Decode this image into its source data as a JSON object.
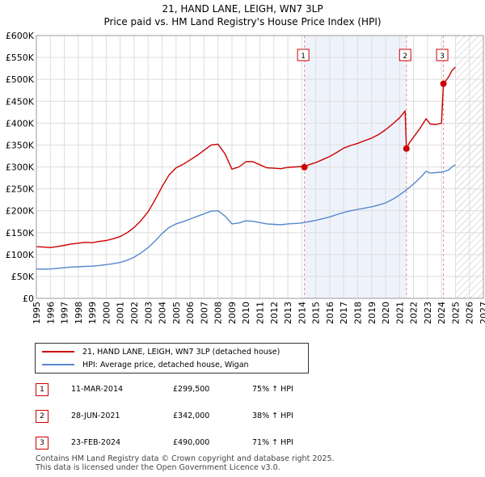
{
  "chart_data": {
    "type": "line",
    "title": "21, HAND LANE, LEIGH, WN7 3LP",
    "subtitle": "Price paid vs. HM Land Registry's House Price Index (HPI)",
    "xlim": [
      1995,
      2027
    ],
    "ylim": [
      0,
      600000
    ],
    "x_ticks": [
      "1995",
      "1996",
      "1997",
      "1998",
      "1999",
      "2000",
      "2001",
      "2002",
      "2003",
      "2004",
      "2005",
      "2006",
      "2007",
      "2008",
      "2009",
      "2010",
      "2011",
      "2012",
      "2013",
      "2014",
      "2015",
      "2016",
      "2017",
      "2018",
      "2019",
      "2020",
      "2021",
      "2022",
      "2023",
      "2024",
      "2025",
      "2026",
      "2027"
    ],
    "y_ticks": [
      {
        "value": 0,
        "label": "£0"
      },
      {
        "value": 50000,
        "label": "£50K"
      },
      {
        "value": 100000,
        "label": "£100K"
      },
      {
        "value": 150000,
        "label": "£150K"
      },
      {
        "value": 200000,
        "label": "£200K"
      },
      {
        "value": 250000,
        "label": "£250K"
      },
      {
        "value": 300000,
        "label": "£300K"
      },
      {
        "value": 350000,
        "label": "£350K"
      },
      {
        "value": 400000,
        "label": "£400K"
      },
      {
        "value": 450000,
        "label": "£450K"
      },
      {
        "value": 500000,
        "label": "£500K"
      },
      {
        "value": 550000,
        "label": "£550K"
      },
      {
        "value": 600000,
        "label": "£600K"
      }
    ],
    "grid": true,
    "shaded_regions": [
      {
        "type": "between_sales",
        "x0": 2014.19,
        "x1": 2021.49,
        "color": "#eef2fb"
      },
      {
        "type": "forecast_hatch",
        "x0": 2025.0,
        "x1": 2027.0
      }
    ],
    "series": [
      {
        "name": "21, HAND LANE, LEIGH, WN7 3LP (detached house)",
        "color": "#cc0000",
        "points": [
          [
            1995.0,
            118000
          ],
          [
            1995.5,
            117000
          ],
          [
            1996.0,
            116000
          ],
          [
            1996.5,
            118000
          ],
          [
            1997.0,
            121000
          ],
          [
            1997.5,
            124000
          ],
          [
            1998.0,
            126000
          ],
          [
            1998.5,
            128000
          ],
          [
            1999.0,
            127000
          ],
          [
            1999.5,
            130000
          ],
          [
            2000.0,
            132000
          ],
          [
            2000.5,
            136000
          ],
          [
            2001.0,
            141000
          ],
          [
            2001.5,
            150000
          ],
          [
            2002.0,
            162000
          ],
          [
            2002.5,
            178000
          ],
          [
            2003.0,
            198000
          ],
          [
            2003.5,
            225000
          ],
          [
            2004.0,
            255000
          ],
          [
            2004.5,
            282000
          ],
          [
            2005.0,
            298000
          ],
          [
            2005.5,
            306000
          ],
          [
            2006.0,
            316000
          ],
          [
            2006.5,
            326000
          ],
          [
            2007.0,
            338000
          ],
          [
            2007.5,
            350000
          ],
          [
            2008.0,
            352000
          ],
          [
            2008.5,
            330000
          ],
          [
            2009.0,
            295000
          ],
          [
            2009.5,
            300000
          ],
          [
            2010.0,
            312000
          ],
          [
            2010.5,
            312000
          ],
          [
            2011.0,
            305000
          ],
          [
            2011.5,
            298000
          ],
          [
            2012.0,
            297000
          ],
          [
            2012.5,
            296000
          ],
          [
            2013.0,
            299000
          ],
          [
            2013.5,
            300000
          ],
          [
            2014.0,
            301000
          ],
          [
            2014.19,
            299500
          ],
          [
            2014.5,
            305000
          ],
          [
            2015.0,
            310000
          ],
          [
            2015.5,
            317000
          ],
          [
            2016.0,
            324000
          ],
          [
            2016.5,
            333000
          ],
          [
            2017.0,
            343000
          ],
          [
            2017.5,
            349000
          ],
          [
            2018.0,
            354000
          ],
          [
            2018.5,
            360000
          ],
          [
            2019.0,
            366000
          ],
          [
            2019.5,
            374000
          ],
          [
            2020.0,
            385000
          ],
          [
            2020.5,
            398000
          ],
          [
            2021.0,
            412000
          ],
          [
            2021.4,
            428000
          ],
          [
            2021.49,
            342000
          ],
          [
            2021.7,
            355000
          ],
          [
            2022.0,
            368000
          ],
          [
            2022.5,
            390000
          ],
          [
            2022.9,
            410000
          ],
          [
            2023.2,
            398000
          ],
          [
            2023.6,
            397000
          ],
          [
            2024.0,
            400000
          ],
          [
            2024.14,
            490000
          ],
          [
            2024.5,
            505000
          ],
          [
            2024.75,
            520000
          ],
          [
            2025.0,
            528000
          ]
        ]
      },
      {
        "name": "HPI: Average price, detached house, Wigan",
        "color": "#5588cc",
        "points": [
          [
            1995.0,
            67000
          ],
          [
            1995.5,
            66500
          ],
          [
            1996.0,
            67000
          ],
          [
            1996.5,
            68500
          ],
          [
            1997.0,
            70000
          ],
          [
            1997.5,
            71500
          ],
          [
            1998.0,
            72000
          ],
          [
            1998.5,
            73000
          ],
          [
            1999.0,
            73500
          ],
          [
            1999.5,
            75000
          ],
          [
            2000.0,
            77000
          ],
          [
            2000.5,
            79000
          ],
          [
            2001.0,
            82000
          ],
          [
            2001.5,
            87000
          ],
          [
            2002.0,
            94000
          ],
          [
            2002.5,
            104000
          ],
          [
            2003.0,
            116000
          ],
          [
            2003.5,
            131000
          ],
          [
            2004.0,
            148000
          ],
          [
            2004.5,
            162000
          ],
          [
            2005.0,
            170000
          ],
          [
            2005.5,
            175000
          ],
          [
            2006.0,
            181000
          ],
          [
            2006.5,
            187000
          ],
          [
            2007.0,
            193000
          ],
          [
            2007.5,
            199000
          ],
          [
            2008.0,
            200000
          ],
          [
            2008.5,
            188000
          ],
          [
            2009.0,
            170000
          ],
          [
            2009.5,
            172000
          ],
          [
            2010.0,
            177000
          ],
          [
            2010.5,
            176000
          ],
          [
            2011.0,
            173000
          ],
          [
            2011.5,
            170000
          ],
          [
            2012.0,
            169000
          ],
          [
            2012.5,
            168000
          ],
          [
            2013.0,
            170000
          ],
          [
            2013.5,
            171000
          ],
          [
            2014.0,
            172000
          ],
          [
            2014.5,
            175000
          ],
          [
            2015.0,
            178000
          ],
          [
            2015.5,
            182000
          ],
          [
            2016.0,
            186000
          ],
          [
            2016.5,
            191000
          ],
          [
            2017.0,
            196000
          ],
          [
            2017.5,
            200000
          ],
          [
            2018.0,
            203000
          ],
          [
            2018.5,
            206000
          ],
          [
            2019.0,
            209000
          ],
          [
            2019.5,
            213000
          ],
          [
            2020.0,
            218000
          ],
          [
            2020.5,
            226000
          ],
          [
            2021.0,
            236000
          ],
          [
            2021.5,
            248000
          ],
          [
            2022.0,
            261000
          ],
          [
            2022.5,
            276000
          ],
          [
            2022.9,
            290000
          ],
          [
            2023.2,
            286000
          ],
          [
            2023.6,
            287000
          ],
          [
            2024.0,
            288000
          ],
          [
            2024.5,
            293000
          ],
          [
            2024.75,
            300000
          ],
          [
            2025.0,
            305000
          ]
        ]
      }
    ],
    "sales": [
      {
        "id": "1",
        "x": 2014.19,
        "value": 299500,
        "date": "11-MAR-2014",
        "price": "£299,500",
        "hpi": "75% ↑ HPI"
      },
      {
        "id": "2",
        "x": 2021.49,
        "value": 342000,
        "date": "28-JUN-2021",
        "price": "£342,000",
        "hpi": "38% ↑ HPI"
      },
      {
        "id": "3",
        "x": 2024.14,
        "value": 490000,
        "date": "23-FEB-2024",
        "price": "£490,000",
        "hpi": "71% ↑ HPI"
      }
    ]
  },
  "legend": {
    "property_label": "21, HAND LANE, LEIGH, WN7 3LP (detached house)",
    "hpi_label": "HPI: Average price, detached house, Wigan"
  },
  "footer": {
    "line1": "Contains HM Land Registry data © Crown copyright and database right 2025.",
    "line2": "This data is licensed under the Open Government Licence v3.0."
  }
}
